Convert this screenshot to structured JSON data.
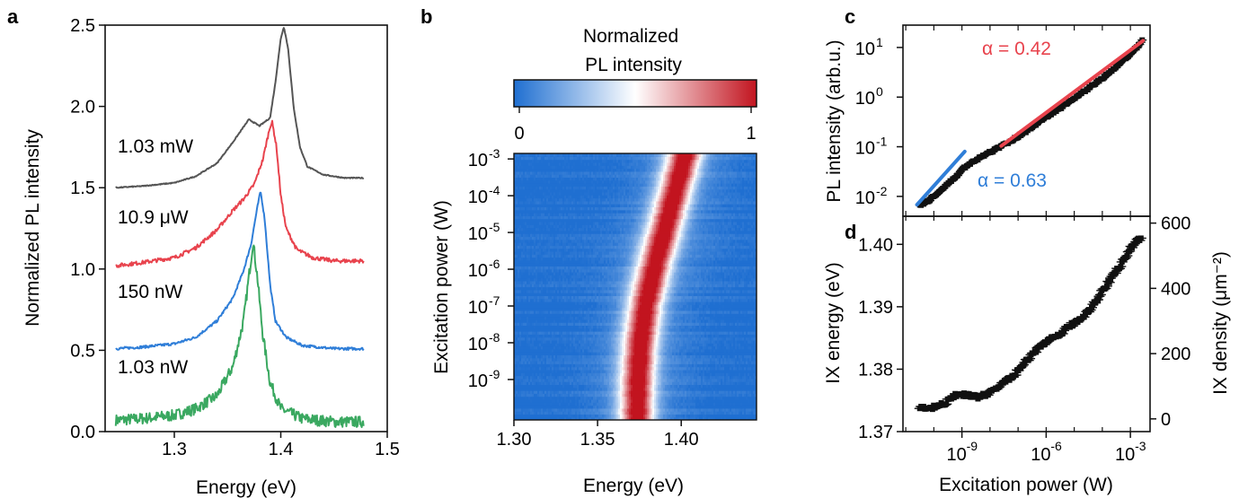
{
  "panels": {
    "a": "a",
    "b": "b",
    "c": "c",
    "d": "d"
  },
  "chart_data": [
    {
      "panel": "a",
      "type": "line",
      "xlabel": "Energy (eV)",
      "ylabel": "Normalized PL intensity",
      "xlim": [
        1.235,
        1.5
      ],
      "ylim": [
        0,
        2.5
      ],
      "xticks": [
        "1.3",
        "1.4",
        "1.5"
      ],
      "yticks": [
        "0.0",
        "0.5",
        "1.0",
        "1.5",
        "2.0",
        "2.5"
      ],
      "series": [
        {
          "name": "1.03 nW",
          "color": "#3aa860",
          "noise": 0.035,
          "values": [
            [
              1.245,
              0.07
            ],
            [
              1.27,
              0.08
            ],
            [
              1.3,
              0.1
            ],
            [
              1.32,
              0.14
            ],
            [
              1.34,
              0.22
            ],
            [
              1.355,
              0.4
            ],
            [
              1.365,
              0.68
            ],
            [
              1.37,
              0.95
            ],
            [
              1.374,
              1.17
            ],
            [
              1.378,
              0.95
            ],
            [
              1.383,
              0.6
            ],
            [
              1.39,
              0.3
            ],
            [
              1.4,
              0.14
            ],
            [
              1.42,
              0.08
            ],
            [
              1.45,
              0.06
            ],
            [
              1.478,
              0.06
            ]
          ]
        },
        {
          "name": "150 nW",
          "color": "#2f7ed8",
          "noise": 0.008,
          "values": [
            [
              1.245,
              0.51
            ],
            [
              1.27,
              0.52
            ],
            [
              1.3,
              0.54
            ],
            [
              1.32,
              0.58
            ],
            [
              1.34,
              0.68
            ],
            [
              1.355,
              0.82
            ],
            [
              1.365,
              0.99
            ],
            [
              1.372,
              1.15
            ],
            [
              1.378,
              1.38
            ],
            [
              1.381,
              1.48
            ],
            [
              1.385,
              1.3
            ],
            [
              1.39,
              0.9
            ],
            [
              1.395,
              0.68
            ],
            [
              1.405,
              0.58
            ],
            [
              1.42,
              0.53
            ],
            [
              1.45,
              0.51
            ],
            [
              1.478,
              0.51
            ]
          ]
        },
        {
          "name": "10.9 μW",
          "color": "#e8434d",
          "noise": 0.012,
          "values": [
            [
              1.245,
              1.02
            ],
            [
              1.27,
              1.04
            ],
            [
              1.3,
              1.07
            ],
            [
              1.32,
              1.13
            ],
            [
              1.34,
              1.24
            ],
            [
              1.355,
              1.36
            ],
            [
              1.365,
              1.43
            ],
            [
              1.375,
              1.52
            ],
            [
              1.383,
              1.67
            ],
            [
              1.39,
              1.88
            ],
            [
              1.392,
              1.9
            ],
            [
              1.396,
              1.75
            ],
            [
              1.4,
              1.45
            ],
            [
              1.405,
              1.25
            ],
            [
              1.415,
              1.12
            ],
            [
              1.43,
              1.07
            ],
            [
              1.45,
              1.05
            ],
            [
              1.478,
              1.05
            ]
          ]
        },
        {
          "name": "1.03 mW",
          "color": "#555555",
          "noise": 0.003,
          "values": [
            [
              1.245,
              1.5
            ],
            [
              1.27,
              1.51
            ],
            [
              1.3,
              1.53
            ],
            [
              1.32,
              1.57
            ],
            [
              1.34,
              1.65
            ],
            [
              1.355,
              1.78
            ],
            [
              1.37,
              1.92
            ],
            [
              1.38,
              1.88
            ],
            [
              1.39,
              1.93
            ],
            [
              1.395,
              2.15
            ],
            [
              1.4,
              2.42
            ],
            [
              1.403,
              2.49
            ],
            [
              1.407,
              2.35
            ],
            [
              1.412,
              2.0
            ],
            [
              1.418,
              1.75
            ],
            [
              1.425,
              1.63
            ],
            [
              1.44,
              1.58
            ],
            [
              1.46,
              1.56
            ],
            [
              1.478,
              1.56
            ]
          ]
        }
      ]
    },
    {
      "panel": "b",
      "type": "heatmap",
      "title": "Normalized PL intensity",
      "colorbar_ticks": [
        "0",
        "1"
      ],
      "colorbar_range": [
        0,
        1
      ],
      "colors": {
        "low": "#1f6fd1",
        "mid": "#ffffff",
        "high": "#c2141f"
      },
      "xlabel": "Energy (eV)",
      "ylabel": "Excitation power (W)",
      "xlim": [
        1.3,
        1.445
      ],
      "ylim_log10": [
        -10.1,
        -2.85
      ],
      "xticks": [
        "1.30",
        "1.35",
        "1.40"
      ],
      "yticks": [
        "10",
        "10",
        "10",
        "10",
        "10",
        "10",
        "10"
      ],
      "ytick_exponents": [
        "-9",
        "-8",
        "-7",
        "-6",
        "-5",
        "-4",
        "-3"
      ],
      "peak_energy_vs_log10_power": [
        [
          -10.1,
          1.374
        ],
        [
          -9,
          1.3745
        ],
        [
          -8,
          1.376
        ],
        [
          -7,
          1.379
        ],
        [
          -6,
          1.384
        ],
        [
          -5,
          1.39
        ],
        [
          -4,
          1.396
        ],
        [
          -3,
          1.402
        ],
        [
          -2.85,
          1.403
        ]
      ]
    },
    {
      "panel": "c",
      "type": "scatter",
      "scale": "log-log",
      "ylabel": "PL intensity (arb.u.)",
      "xlim_log10": [
        -11.1,
        -2.3
      ],
      "ylim_log10": [
        -2.4,
        1.45
      ],
      "yticks": [
        "10",
        "10",
        "10",
        "10"
      ],
      "ytick_exponents": [
        "-2",
        "-1",
        "0",
        "1"
      ],
      "points": [
        [
          -10.5,
          0.0068
        ],
        [
          -10.2,
          0.0082
        ],
        [
          -9.9,
          0.011
        ],
        [
          -9.6,
          0.016
        ],
        [
          -9.3,
          0.022
        ],
        [
          -9,
          0.035
        ],
        [
          -8.6,
          0.05
        ],
        [
          -8.1,
          0.072
        ],
        [
          -7.5,
          0.11
        ],
        [
          -7,
          0.16
        ],
        [
          -6.5,
          0.25
        ],
        [
          -6,
          0.4
        ],
        [
          -5.5,
          0.6
        ],
        [
          -5,
          0.95
        ],
        [
          -4.5,
          1.5
        ],
        [
          -4,
          2.4
        ],
        [
          -3.5,
          4.2
        ],
        [
          -3,
          7.5
        ],
        [
          -2.7,
          11
        ],
        [
          -2.55,
          14
        ]
      ],
      "fits": [
        {
          "label": "α = 0.63",
          "alpha": 0.63,
          "color": "#2f7ed8",
          "x_log10": [
            -10.6,
            -8.9
          ]
        },
        {
          "label": "α = 0.42",
          "alpha": 0.42,
          "color": "#e8434d",
          "x_log10": [
            -7.6,
            -2.55
          ]
        }
      ]
    },
    {
      "panel": "d",
      "type": "scatter",
      "scale": "log-x",
      "xlabel": "Excitation power (W)",
      "ylabel": "IX energy (eV)",
      "ylabel_right": "IX density (μm⁻²)",
      "xlim_log10": [
        -11.1,
        -2.3
      ],
      "ylim": [
        1.37,
        1.4045
      ],
      "xticks": [
        "10",
        "10",
        "10"
      ],
      "xtick_exponents": [
        "-9",
        "-6",
        "-3"
      ],
      "yticks": [
        "1.37",
        "1.38",
        "1.39",
        "1.40"
      ],
      "right_ticks": [
        "0",
        "200",
        "400",
        "600"
      ],
      "right_range": [
        -39,
        621
      ],
      "points": [
        [
          -10.5,
          1.3738
        ],
        [
          -10.2,
          1.3737
        ],
        [
          -9.9,
          1.374
        ],
        [
          -9.6,
          1.3745
        ],
        [
          -9.3,
          1.3757
        ],
        [
          -9,
          1.376
        ],
        [
          -8.5,
          1.3755
        ],
        [
          -8,
          1.3762
        ],
        [
          -7.6,
          1.3776
        ],
        [
          -7.2,
          1.3788
        ],
        [
          -6.8,
          1.3808
        ],
        [
          -6.4,
          1.3828
        ],
        [
          -6,
          1.3845
        ],
        [
          -5.6,
          1.3852
        ],
        [
          -5.2,
          1.3868
        ],
        [
          -4.8,
          1.388
        ],
        [
          -4.4,
          1.3898
        ],
        [
          -4,
          1.3925
        ],
        [
          -3.6,
          1.395
        ],
        [
          -3.2,
          1.3978
        ],
        [
          -2.9,
          1.4
        ],
        [
          -2.6,
          1.4012
        ]
      ]
    }
  ],
  "labels": {
    "a_series": [
      "1.03 mW",
      "10.9 μW",
      "150 nW",
      "1.03 nW"
    ]
  }
}
